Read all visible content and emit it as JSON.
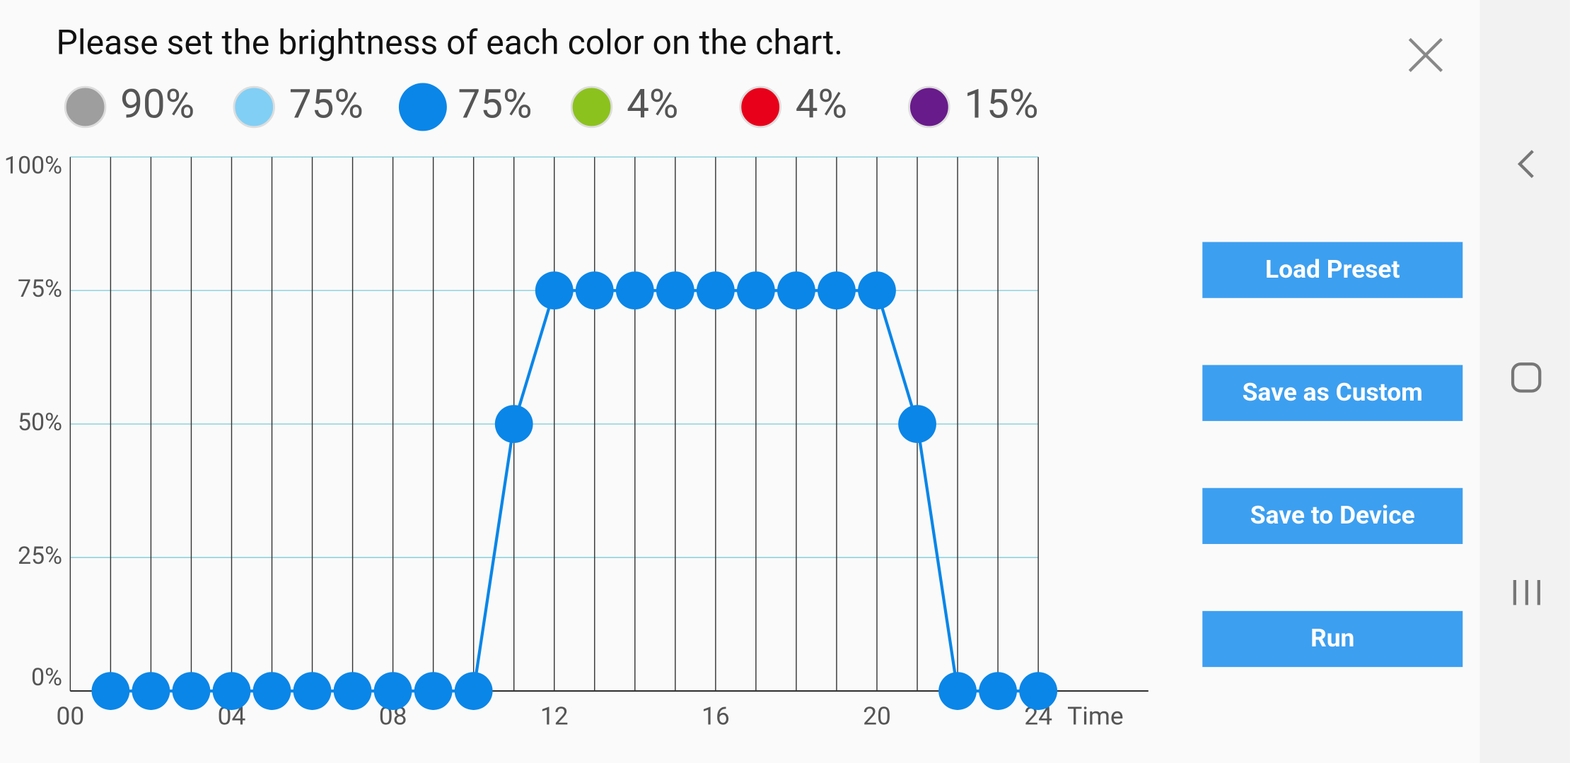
{
  "instruction": "Please set the brightness of each color on the chart.",
  "channels": [
    {
      "color": "#9e9e9e",
      "value": 90,
      "label": "90%"
    },
    {
      "color": "#81cff5",
      "value": 75,
      "label": "75%"
    },
    {
      "color": "#0a86e8",
      "value": 75,
      "label": "75%",
      "selected": true
    },
    {
      "color": "#8cc21e",
      "value": 4,
      "label": "4%"
    },
    {
      "color": "#e8001a",
      "value": 4,
      "label": "4%"
    },
    {
      "color": "#681b8a",
      "value": 15,
      "label": "15%"
    }
  ],
  "chart_data": {
    "type": "line",
    "color": "#0a86e8",
    "x": [
      1,
      2,
      3,
      4,
      5,
      6,
      7,
      8,
      9,
      10,
      11,
      12,
      13,
      14,
      15,
      16,
      17,
      18,
      19,
      20,
      21,
      22,
      23,
      24
    ],
    "values": [
      0,
      0,
      0,
      0,
      0,
      0,
      0,
      0,
      0,
      0,
      50,
      75,
      75,
      75,
      75,
      75,
      75,
      75,
      75,
      75,
      50,
      0,
      0,
      0
    ],
    "xlim": [
      0,
      24
    ],
    "xticks": [
      {
        "value": 0,
        "label": "00"
      },
      {
        "value": 4,
        "label": "04"
      },
      {
        "value": 8,
        "label": "08"
      },
      12,
      16,
      20,
      24
    ],
    "xlabel": "Time",
    "ylim": [
      0,
      100
    ],
    "yticks": [
      {
        "value": 0,
        "label": "0%"
      },
      {
        "value": 25,
        "label": "25%"
      },
      {
        "value": 50,
        "label": "50%"
      },
      {
        "value": 75,
        "label": "75%"
      },
      {
        "value": 100,
        "label": "100%"
      }
    ],
    "grid": true
  },
  "buttons": [
    "Load Preset",
    "Save as Custom",
    "Save to Device",
    "Run"
  ]
}
